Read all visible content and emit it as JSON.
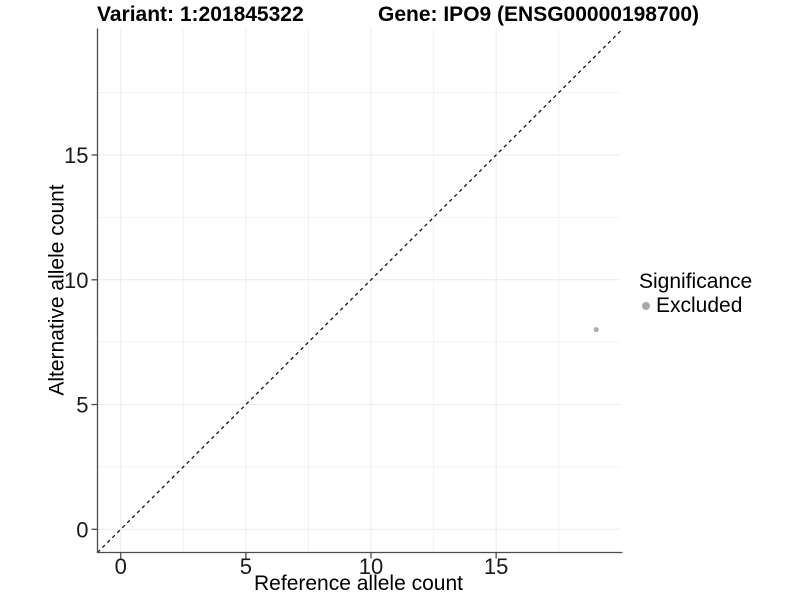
{
  "chart_data": {
    "type": "scatter",
    "title_variant": "Variant: 1:201845322",
    "title_gene": "Gene: IPO9 (ENSG00000198700)",
    "xlabel": "Reference allele count",
    "ylabel": "Alternative allele count",
    "xlim": [
      -0.93,
      19.97
    ],
    "ylim": [
      -0.93,
      20.07
    ],
    "x_ticks": [
      0,
      5,
      10,
      15
    ],
    "y_ticks": [
      0,
      5,
      10,
      15
    ],
    "minor_gridlines": [
      2.5,
      7.5,
      12.5,
      17.5
    ],
    "grid": true,
    "points": [
      {
        "x": 19,
        "y": 8,
        "significance": "Excluded"
      }
    ],
    "reference_line": {
      "type": "identity",
      "slope": 1,
      "intercept": 0,
      "style": "dashed"
    },
    "legend": {
      "title": "Significance",
      "position": "right",
      "items": [
        {
          "label": "Excluded",
          "color": "#a8a8a8"
        }
      ]
    },
    "colors": {
      "point": "#ababab",
      "axis": "#4d4d4d",
      "tick_label": "#1a1a1a",
      "grid_major": "#ebebeb",
      "grid_minor": "#f3f3f3",
      "dashed_line": "#141414",
      "background": "#ffffff"
    }
  }
}
